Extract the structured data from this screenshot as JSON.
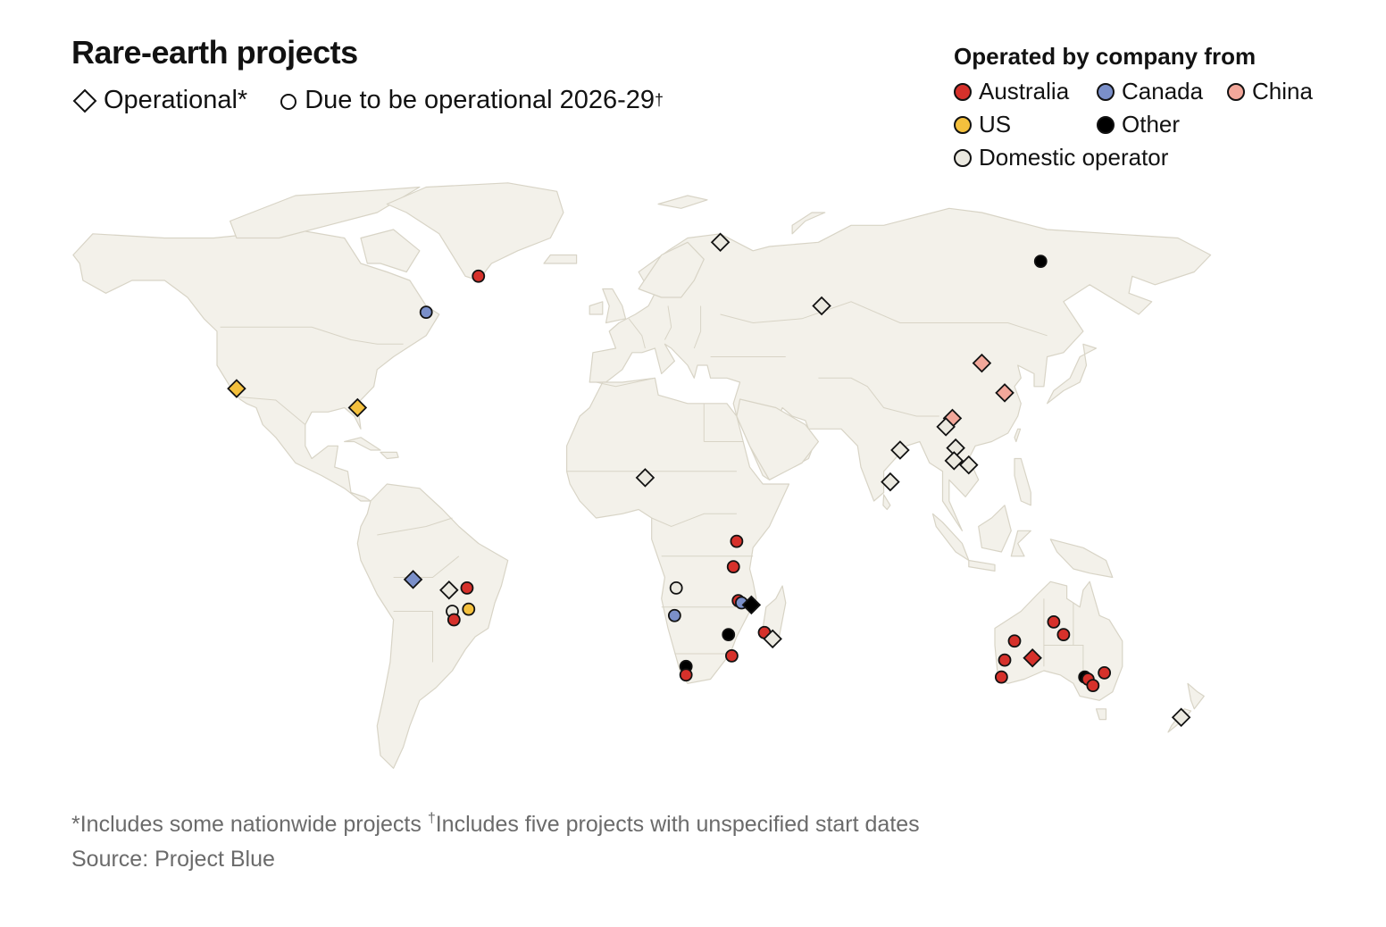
{
  "title": "Rare-earth projects",
  "shape_legend": {
    "operational": "Operational*",
    "planned": "Due to be operational 2026-29",
    "planned_mark": "†"
  },
  "color_legend": {
    "heading": "Operated by company from",
    "entries": [
      {
        "label": "Australia",
        "color": "#d6312b"
      },
      {
        "label": "Canada",
        "color": "#7a8fc9"
      },
      {
        "label": "China",
        "color": "#f2a79a"
      },
      {
        "label": "US",
        "color": "#f4c03d"
      },
      {
        "label": "Other",
        "color": "#000000"
      },
      {
        "label": "Domestic operator",
        "color": "#ebe9e0"
      }
    ]
  },
  "colors": {
    "land": "#f3f1ea",
    "land_border": "#d8d4c6",
    "outline": "#121212"
  },
  "chart_data": {
    "type": "map",
    "projection": "equirectangular",
    "points": [
      {
        "lon": -118,
        "lat": 34.5,
        "kind": "operational",
        "operator": "US"
      },
      {
        "lon": -81,
        "lat": 30,
        "kind": "operational",
        "operator": "US"
      },
      {
        "lon": -60,
        "lat": 52.5,
        "kind": "planned",
        "operator": "Canada"
      },
      {
        "lon": -44,
        "lat": 61,
        "kind": "planned",
        "operator": "Australia"
      },
      {
        "lon": 30,
        "lat": 69,
        "kind": "operational",
        "operator": "Domestic operator"
      },
      {
        "lon": 61,
        "lat": 54,
        "kind": "operational",
        "operator": "Domestic operator"
      },
      {
        "lon": 128,
        "lat": 64.5,
        "kind": "planned",
        "operator": "Other"
      },
      {
        "lon": 110,
        "lat": 40.5,
        "kind": "operational",
        "operator": "China"
      },
      {
        "lon": 117,
        "lat": 33.5,
        "kind": "operational",
        "operator": "China"
      },
      {
        "lon": 101,
        "lat": 27.5,
        "kind": "operational",
        "operator": "China"
      },
      {
        "lon": 99,
        "lat": 25.5,
        "kind": "operational",
        "operator": "Domestic operator"
      },
      {
        "lon": 102,
        "lat": 20.5,
        "kind": "operational",
        "operator": "Domestic operator"
      },
      {
        "lon": 101.5,
        "lat": 17.5,
        "kind": "operational",
        "operator": "Domestic operator"
      },
      {
        "lon": 106,
        "lat": 16.5,
        "kind": "operational",
        "operator": "Domestic operator"
      },
      {
        "lon": 85,
        "lat": 20,
        "kind": "operational",
        "operator": "Domestic operator"
      },
      {
        "lon": 82,
        "lat": 12.5,
        "kind": "operational",
        "operator": "Domestic operator"
      },
      {
        "lon": 7,
        "lat": 13.5,
        "kind": "operational",
        "operator": "Domestic operator"
      },
      {
        "lon": -64,
        "lat": -10.5,
        "kind": "operational",
        "operator": "Canada"
      },
      {
        "lon": -53,
        "lat": -13,
        "kind": "operational",
        "operator": "Domestic operator"
      },
      {
        "lon": -47.5,
        "lat": -12.5,
        "kind": "planned",
        "operator": "Australia"
      },
      {
        "lon": -47,
        "lat": -17.5,
        "kind": "planned",
        "operator": "US"
      },
      {
        "lon": -52,
        "lat": -18,
        "kind": "planned",
        "operator": "Domestic operator"
      },
      {
        "lon": -51.5,
        "lat": -20,
        "kind": "planned",
        "operator": "Australia"
      },
      {
        "lon": 35,
        "lat": -1.5,
        "kind": "planned",
        "operator": "Australia"
      },
      {
        "lon": 34,
        "lat": -7.5,
        "kind": "planned",
        "operator": "Australia"
      },
      {
        "lon": 16.5,
        "lat": -12.5,
        "kind": "planned",
        "operator": "Domestic operator"
      },
      {
        "lon": 16,
        "lat": -19,
        "kind": "planned",
        "operator": "Canada"
      },
      {
        "lon": 35.5,
        "lat": -15.5,
        "kind": "planned",
        "operator": "Australia"
      },
      {
        "lon": 36.5,
        "lat": -16,
        "kind": "planned",
        "operator": "Canada"
      },
      {
        "lon": 39.5,
        "lat": -16.5,
        "kind": "operational",
        "operator": "Other"
      },
      {
        "lon": 32.5,
        "lat": -23.5,
        "kind": "planned",
        "operator": "Other"
      },
      {
        "lon": 43.5,
        "lat": -23,
        "kind": "planned",
        "operator": "Australia"
      },
      {
        "lon": 46,
        "lat": -24.5,
        "kind": "operational",
        "operator": "Domestic operator"
      },
      {
        "lon": 33.5,
        "lat": -28.5,
        "kind": "planned",
        "operator": "Australia"
      },
      {
        "lon": 19.5,
        "lat": -31,
        "kind": "planned",
        "operator": "Other"
      },
      {
        "lon": 19.5,
        "lat": -33,
        "kind": "planned",
        "operator": "Australia"
      },
      {
        "lon": 132,
        "lat": -20.5,
        "kind": "planned",
        "operator": "Australia"
      },
      {
        "lon": 135,
        "lat": -23.5,
        "kind": "planned",
        "operator": "Australia"
      },
      {
        "lon": 120,
        "lat": -25,
        "kind": "planned",
        "operator": "Australia"
      },
      {
        "lon": 125.5,
        "lat": -29,
        "kind": "operational",
        "operator": "Australia"
      },
      {
        "lon": 117,
        "lat": -29.5,
        "kind": "planned",
        "operator": "Australia"
      },
      {
        "lon": 116,
        "lat": -33.5,
        "kind": "planned",
        "operator": "Australia"
      },
      {
        "lon": 141.5,
        "lat": -33.5,
        "kind": "planned",
        "operator": "Other"
      },
      {
        "lon": 142.5,
        "lat": -34,
        "kind": "planned",
        "operator": "Australia"
      },
      {
        "lon": 144,
        "lat": -35.5,
        "kind": "planned",
        "operator": "Australia"
      },
      {
        "lon": 147.5,
        "lat": -32.5,
        "kind": "planned",
        "operator": "Australia"
      },
      {
        "lon": 171,
        "lat": -43,
        "kind": "operational",
        "operator": "Domestic operator"
      }
    ]
  },
  "footnote": {
    "part1": "*Includes some nationwide projects ",
    "mark": "†",
    "part2": "Includes five projects with unspecified start dates"
  },
  "source": "Source: Project Blue"
}
